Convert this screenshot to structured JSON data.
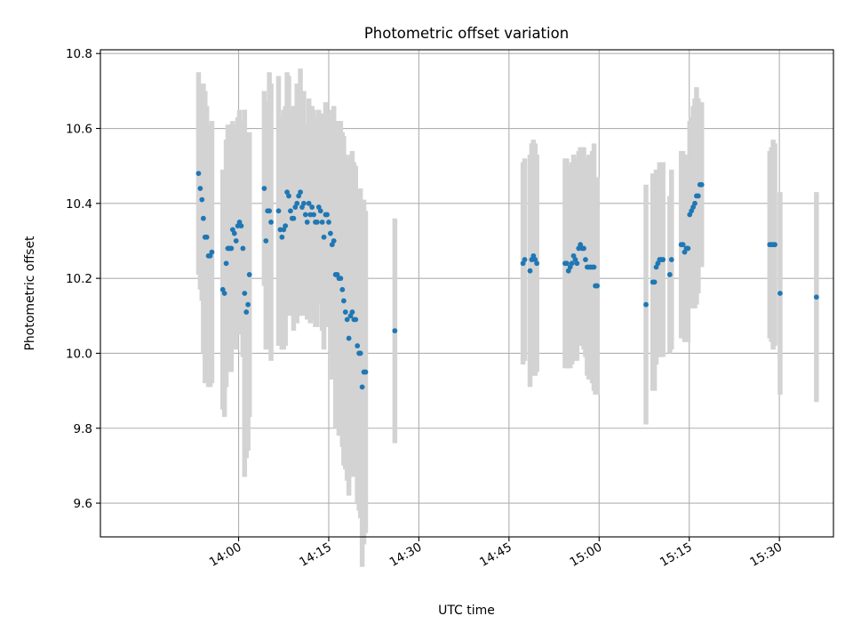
{
  "chart_data": {
    "type": "scatter",
    "title": "Photometric offset variation",
    "xlabel": "UTC time",
    "ylabel": "Photometric offset",
    "xlim": [
      "13:37",
      "15:39"
    ],
    "ylim": [
      9.51,
      10.81
    ],
    "x_ticks": [
      "14:00",
      "14:15",
      "14:30",
      "14:45",
      "15:00",
      "15:15",
      "15:30"
    ],
    "y_ticks": [
      "9.6",
      "9.8",
      "10.0",
      "10.2",
      "10.4",
      "10.6",
      "10.8"
    ],
    "grid": true,
    "colors": {
      "points": "#1f77b4",
      "error_bars": "#d3d3d3"
    },
    "series": [
      {
        "x": [
          "13:53:20",
          "13:53:37",
          "13:53:54",
          "13:54:08",
          "13:54:25",
          "13:54:42",
          "13:54:59",
          "13:55:16",
          "13:55:33",
          "13:57:22",
          "13:57:39",
          "13:57:56",
          "13:58:13",
          "13:58:30",
          "13:58:47",
          "13:59:01",
          "13:59:18",
          "13:59:35",
          "13:59:52",
          "14:00:09",
          "14:00:26",
          "14:00:43",
          "14:01:00",
          "14:01:17",
          "14:01:34",
          "14:01:48",
          "14:04:16",
          "14:04:33",
          "14:04:50",
          "14:05:07",
          "14:05:24",
          "14:06:39",
          "14:06:56",
          "14:07:13",
          "14:07:30",
          "14:07:47",
          "14:08:04",
          "14:08:21",
          "14:08:38",
          "14:08:55",
          "14:09:09",
          "14:09:26",
          "14:09:43",
          "14:10:00",
          "14:10:17",
          "14:10:34",
          "14:10:51",
          "14:11:08",
          "14:11:25",
          "14:11:42",
          "14:11:56",
          "14:12:13",
          "14:12:30",
          "14:12:47",
          "14:13:04",
          "14:13:21",
          "14:13:38",
          "14:13:55",
          "14:14:12",
          "14:14:29",
          "14:14:43",
          "14:15:00",
          "14:15:17",
          "14:15:34",
          "14:15:51",
          "14:16:08",
          "14:16:25",
          "14:16:42",
          "14:16:59",
          "14:17:16",
          "14:17:30",
          "14:17:47",
          "14:18:04",
          "14:18:21",
          "14:18:38",
          "14:18:55",
          "14:19:12",
          "14:19:29",
          "14:19:46",
          "14:20:03",
          "14:20:17",
          "14:20:34",
          "14:20:51",
          "14:21:08",
          "14:26:00",
          "14:47:20",
          "14:47:37",
          "14:48:30",
          "14:48:47",
          "14:49:04",
          "14:49:21",
          "14:49:38",
          "14:54:20",
          "14:54:37",
          "14:54:54",
          "14:55:11",
          "14:55:28",
          "14:55:45",
          "14:56:02",
          "14:56:19",
          "14:56:36",
          "14:56:53",
          "14:57:10",
          "14:57:27",
          "14:57:44",
          "14:58:01",
          "14:58:18",
          "14:58:35",
          "14:58:52",
          "14:59:09",
          "14:59:23",
          "14:59:40",
          "15:07:48",
          "15:08:56",
          "15:09:13",
          "15:09:30",
          "15:09:47",
          "15:10:04",
          "15:10:21",
          "15:10:38",
          "15:11:46",
          "15:12:03",
          "15:13:40",
          "15:13:57",
          "15:14:14",
          "15:14:31",
          "15:14:48",
          "15:15:05",
          "15:15:22",
          "15:15:39",
          "15:15:56",
          "15:16:13",
          "15:16:30",
          "15:16:47",
          "15:17:04",
          "15:28:24",
          "15:28:41",
          "15:28:58",
          "15:29:15",
          "15:30:07",
          "15:36:10"
        ],
        "y": [
          10.48,
          10.44,
          10.41,
          10.36,
          10.31,
          10.31,
          10.26,
          10.26,
          10.27,
          10.17,
          10.16,
          10.24,
          10.28,
          10.28,
          10.28,
          10.33,
          10.32,
          10.3,
          10.34,
          10.35,
          10.34,
          10.28,
          10.16,
          10.11,
          10.13,
          10.21,
          10.44,
          10.3,
          10.38,
          10.38,
          10.35,
          10.38,
          10.33,
          10.31,
          10.33,
          10.34,
          10.43,
          10.42,
          10.38,
          10.36,
          10.36,
          10.39,
          10.4,
          10.42,
          10.43,
          10.39,
          10.4,
          10.37,
          10.35,
          10.4,
          10.37,
          10.39,
          10.37,
          10.35,
          10.35,
          10.39,
          10.38,
          10.35,
          10.31,
          10.37,
          10.37,
          10.35,
          10.32,
          10.29,
          10.3,
          10.21,
          10.21,
          10.2,
          10.2,
          10.17,
          10.14,
          10.11,
          10.09,
          10.04,
          10.1,
          10.11,
          10.09,
          10.09,
          10.02,
          10.0,
          10.0,
          9.91,
          9.95,
          9.95,
          10.06,
          10.24,
          10.25,
          10.22,
          10.25,
          10.26,
          10.25,
          10.24,
          10.24,
          10.24,
          10.22,
          10.23,
          10.24,
          10.26,
          10.25,
          10.24,
          10.28,
          10.29,
          10.28,
          10.28,
          10.25,
          10.23,
          10.23,
          10.23,
          10.23,
          10.23,
          10.18,
          10.18,
          10.13,
          10.19,
          10.19,
          10.23,
          10.24,
          10.25,
          10.25,
          10.25,
          10.21,
          10.25,
          10.29,
          10.29,
          10.27,
          10.28,
          10.28,
          10.37,
          10.38,
          10.39,
          10.4,
          10.42,
          10.42,
          10.45,
          10.45,
          10.29,
          10.29,
          10.29,
          10.29,
          10.16,
          10.15
        ],
        "err": [
          0.27,
          0.27,
          0.27,
          0.36,
          0.39,
          0.35,
          0.35,
          0.35,
          0.35,
          0.32,
          0.33,
          0.33,
          0.33,
          0.33,
          0.33,
          0.29,
          0.29,
          0.29,
          0.29,
          0.3,
          0.28,
          0.29,
          0.49,
          0.39,
          0.39,
          0.38,
          0.26,
          0.29,
          0.29,
          0.37,
          0.37,
          0.36,
          0.3,
          0.3,
          0.32,
          0.32,
          0.32,
          0.32,
          0.26,
          0.26,
          0.3,
          0.27,
          0.32,
          0.3,
          0.33,
          0.25,
          0.3,
          0.24,
          0.26,
          0.28,
          0.29,
          0.27,
          0.28,
          0.28,
          0.28,
          0.26,
          0.25,
          0.29,
          0.3,
          0.3,
          0.25,
          0.28,
          0.32,
          0.36,
          0.36,
          0.41,
          0.41,
          0.42,
          0.42,
          0.42,
          0.44,
          0.42,
          0.43,
          0.42,
          0.43,
          0.43,
          0.42,
          0.41,
          0.42,
          0.42,
          0.44,
          0.48,
          0.46,
          0.43,
          0.3,
          0.27,
          0.27,
          0.31,
          0.31,
          0.31,
          0.31,
          0.29,
          0.28,
          0.28,
          0.26,
          0.27,
          0.27,
          0.27,
          0.27,
          0.26,
          0.26,
          0.26,
          0.26,
          0.27,
          0.26,
          0.29,
          0.3,
          0.3,
          0.31,
          0.33,
          0.29,
          0.29,
          0.32,
          0.29,
          0.29,
          0.26,
          0.25,
          0.26,
          0.26,
          0.26,
          0.21,
          0.24,
          0.25,
          0.25,
          0.24,
          0.25,
          0.25,
          0.25,
          0.25,
          0.27,
          0.28,
          0.29,
          0.26,
          0.22,
          0.22,
          0.25,
          0.26,
          0.28,
          0.27,
          0.27,
          0.28
        ]
      }
    ]
  }
}
